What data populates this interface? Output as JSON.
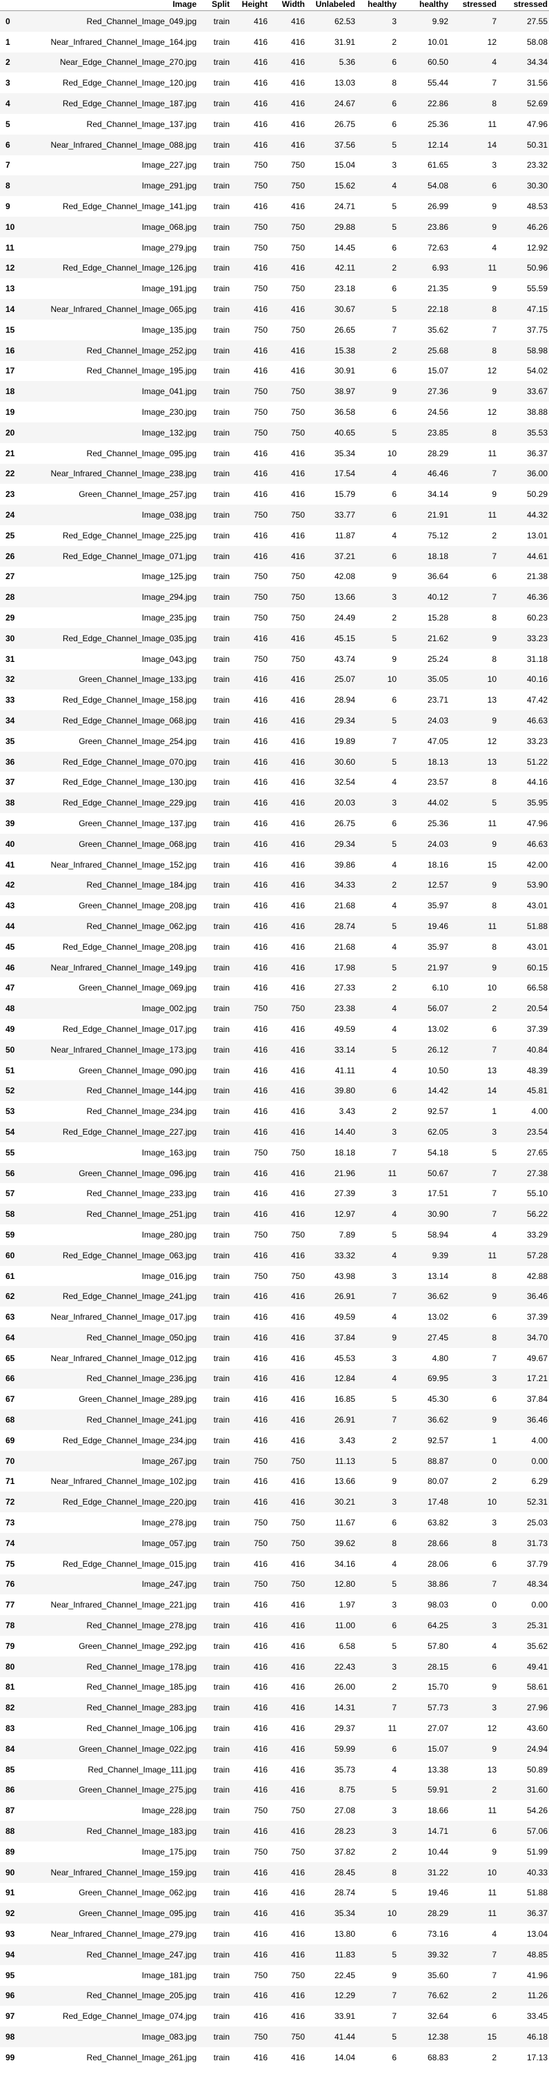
{
  "columns": [
    "",
    "Image",
    "Split",
    "Height",
    "Width",
    "Unlabeled",
    "healthy",
    "healthy",
    "stressed",
    "stressed"
  ],
  "rows": [
    [
      "0",
      "Red_Channel_Image_049.jpg",
      "train",
      "416",
      "416",
      "62.53",
      "3",
      "9.92",
      "7",
      "27.55"
    ],
    [
      "1",
      "Near_Infrared_Channel_Image_164.jpg",
      "train",
      "416",
      "416",
      "31.91",
      "2",
      "10.01",
      "12",
      "58.08"
    ],
    [
      "2",
      "Near_Edge_Channel_Image_270.jpg",
      "train",
      "416",
      "416",
      "5.36",
      "6",
      "60.50",
      "4",
      "34.34"
    ],
    [
      "3",
      "Red_Edge_Channel_Image_120.jpg",
      "train",
      "416",
      "416",
      "13.03",
      "8",
      "55.44",
      "7",
      "31.56"
    ],
    [
      "4",
      "Red_Edge_Channel_Image_187.jpg",
      "train",
      "416",
      "416",
      "24.67",
      "6",
      "22.86",
      "8",
      "52.69"
    ],
    [
      "5",
      "Red_Channel_Image_137.jpg",
      "train",
      "416",
      "416",
      "26.75",
      "6",
      "25.36",
      "11",
      "47.96"
    ],
    [
      "6",
      "Near_Infrared_Channel_Image_088.jpg",
      "train",
      "416",
      "416",
      "37.56",
      "5",
      "12.14",
      "14",
      "50.31"
    ],
    [
      "7",
      "Image_227.jpg",
      "train",
      "750",
      "750",
      "15.04",
      "3",
      "61.65",
      "3",
      "23.32"
    ],
    [
      "8",
      "Image_291.jpg",
      "train",
      "750",
      "750",
      "15.62",
      "4",
      "54.08",
      "6",
      "30.30"
    ],
    [
      "9",
      "Red_Edge_Channel_Image_141.jpg",
      "train",
      "416",
      "416",
      "24.71",
      "5",
      "26.99",
      "9",
      "48.53"
    ],
    [
      "10",
      "Image_068.jpg",
      "train",
      "750",
      "750",
      "29.88",
      "5",
      "23.86",
      "9",
      "46.26"
    ],
    [
      "11",
      "Image_279.jpg",
      "train",
      "750",
      "750",
      "14.45",
      "6",
      "72.63",
      "4",
      "12.92"
    ],
    [
      "12",
      "Red_Edge_Channel_Image_126.jpg",
      "train",
      "416",
      "416",
      "42.11",
      "2",
      "6.93",
      "11",
      "50.96"
    ],
    [
      "13",
      "Image_191.jpg",
      "train",
      "750",
      "750",
      "23.18",
      "6",
      "21.35",
      "9",
      "55.59"
    ],
    [
      "14",
      "Near_Infrared_Channel_Image_065.jpg",
      "train",
      "416",
      "416",
      "30.67",
      "5",
      "22.18",
      "8",
      "47.15"
    ],
    [
      "15",
      "Image_135.jpg",
      "train",
      "750",
      "750",
      "26.65",
      "7",
      "35.62",
      "7",
      "37.75"
    ],
    [
      "16",
      "Red_Channel_Image_252.jpg",
      "train",
      "416",
      "416",
      "15.38",
      "2",
      "25.68",
      "8",
      "58.98"
    ],
    [
      "17",
      "Red_Channel_Image_195.jpg",
      "train",
      "416",
      "416",
      "30.91",
      "6",
      "15.07",
      "12",
      "54.02"
    ],
    [
      "18",
      "Image_041.jpg",
      "train",
      "750",
      "750",
      "38.97",
      "9",
      "27.36",
      "9",
      "33.67"
    ],
    [
      "19",
      "Image_230.jpg",
      "train",
      "750",
      "750",
      "36.58",
      "6",
      "24.56",
      "12",
      "38.88"
    ],
    [
      "20",
      "Image_132.jpg",
      "train",
      "750",
      "750",
      "40.65",
      "5",
      "23.85",
      "8",
      "35.53"
    ],
    [
      "21",
      "Red_Channel_Image_095.jpg",
      "train",
      "416",
      "416",
      "35.34",
      "10",
      "28.29",
      "11",
      "36.37"
    ],
    [
      "22",
      "Near_Infrared_Channel_Image_238.jpg",
      "train",
      "416",
      "416",
      "17.54",
      "4",
      "46.46",
      "7",
      "36.00"
    ],
    [
      "23",
      "Green_Channel_Image_257.jpg",
      "train",
      "416",
      "416",
      "15.79",
      "6",
      "34.14",
      "9",
      "50.29"
    ],
    [
      "24",
      "Image_038.jpg",
      "train",
      "750",
      "750",
      "33.77",
      "6",
      "21.91",
      "11",
      "44.32"
    ],
    [
      "25",
      "Red_Edge_Channel_Image_225.jpg",
      "train",
      "416",
      "416",
      "11.87",
      "4",
      "75.12",
      "2",
      "13.01"
    ],
    [
      "26",
      "Red_Edge_Channel_Image_071.jpg",
      "train",
      "416",
      "416",
      "37.21",
      "6",
      "18.18",
      "7",
      "44.61"
    ],
    [
      "27",
      "Image_125.jpg",
      "train",
      "750",
      "750",
      "42.08",
      "9",
      "36.64",
      "6",
      "21.38"
    ],
    [
      "28",
      "Image_294.jpg",
      "train",
      "750",
      "750",
      "13.66",
      "3",
      "40.12",
      "7",
      "46.36"
    ],
    [
      "29",
      "Image_235.jpg",
      "train",
      "750",
      "750",
      "24.49",
      "2",
      "15.28",
      "8",
      "60.23"
    ],
    [
      "30",
      "Red_Edge_Channel_Image_035.jpg",
      "train",
      "416",
      "416",
      "45.15",
      "5",
      "21.62",
      "9",
      "33.23"
    ],
    [
      "31",
      "Image_043.jpg",
      "train",
      "750",
      "750",
      "43.74",
      "9",
      "25.24",
      "8",
      "31.18"
    ],
    [
      "32",
      "Green_Channel_Image_133.jpg",
      "train",
      "416",
      "416",
      "25.07",
      "10",
      "35.05",
      "10",
      "40.16"
    ],
    [
      "33",
      "Red_Edge_Channel_Image_158.jpg",
      "train",
      "416",
      "416",
      "28.94",
      "6",
      "23.71",
      "13",
      "47.42"
    ],
    [
      "34",
      "Red_Edge_Channel_Image_068.jpg",
      "train",
      "416",
      "416",
      "29.34",
      "5",
      "24.03",
      "9",
      "46.63"
    ],
    [
      "35",
      "Green_Channel_Image_254.jpg",
      "train",
      "416",
      "416",
      "19.89",
      "7",
      "47.05",
      "12",
      "33.23"
    ],
    [
      "36",
      "Red_Edge_Channel_Image_070.jpg",
      "train",
      "416",
      "416",
      "30.60",
      "5",
      "18.13",
      "13",
      "51.22"
    ],
    [
      "37",
      "Red_Edge_Channel_Image_130.jpg",
      "train",
      "416",
      "416",
      "32.54",
      "4",
      "23.57",
      "8",
      "44.16"
    ],
    [
      "38",
      "Red_Edge_Channel_Image_229.jpg",
      "train",
      "416",
      "416",
      "20.03",
      "3",
      "44.02",
      "5",
      "35.95"
    ],
    [
      "39",
      "Green_Channel_Image_137.jpg",
      "train",
      "416",
      "416",
      "26.75",
      "6",
      "25.36",
      "11",
      "47.96"
    ],
    [
      "40",
      "Green_Channel_Image_068.jpg",
      "train",
      "416",
      "416",
      "29.34",
      "5",
      "24.03",
      "9",
      "46.63"
    ],
    [
      "41",
      "Near_Infrared_Channel_Image_152.jpg",
      "train",
      "416",
      "416",
      "39.86",
      "4",
      "18.16",
      "15",
      "42.00"
    ],
    [
      "42",
      "Red_Channel_Image_184.jpg",
      "train",
      "416",
      "416",
      "34.33",
      "2",
      "12.57",
      "9",
      "53.90"
    ],
    [
      "43",
      "Green_Channel_Image_208.jpg",
      "train",
      "416",
      "416",
      "21.68",
      "4",
      "35.97",
      "8",
      "43.01"
    ],
    [
      "44",
      "Red_Channel_Image_062.jpg",
      "train",
      "416",
      "416",
      "28.74",
      "5",
      "19.46",
      "11",
      "51.88"
    ],
    [
      "45",
      "Red_Edge_Channel_Image_208.jpg",
      "train",
      "416",
      "416",
      "21.68",
      "4",
      "35.97",
      "8",
      "43.01"
    ],
    [
      "46",
      "Near_Infrared_Channel_Image_149.jpg",
      "train",
      "416",
      "416",
      "17.98",
      "5",
      "21.97",
      "9",
      "60.15"
    ],
    [
      "47",
      "Green_Channel_Image_069.jpg",
      "train",
      "416",
      "416",
      "27.33",
      "2",
      "6.10",
      "10",
      "66.58"
    ],
    [
      "48",
      "Image_002.jpg",
      "train",
      "750",
      "750",
      "23.38",
      "4",
      "56.07",
      "2",
      "20.54"
    ],
    [
      "49",
      "Red_Edge_Channel_Image_017.jpg",
      "train",
      "416",
      "416",
      "49.59",
      "4",
      "13.02",
      "6",
      "37.39"
    ],
    [
      "50",
      "Near_Infrared_Channel_Image_173.jpg",
      "train",
      "416",
      "416",
      "33.14",
      "5",
      "26.12",
      "7",
      "40.84"
    ],
    [
      "51",
      "Green_Channel_Image_090.jpg",
      "train",
      "416",
      "416",
      "41.11",
      "4",
      "10.50",
      "13",
      "48.39"
    ],
    [
      "52",
      "Red_Channel_Image_144.jpg",
      "train",
      "416",
      "416",
      "39.80",
      "6",
      "14.42",
      "14",
      "45.81"
    ],
    [
      "53",
      "Red_Channel_Image_234.jpg",
      "train",
      "416",
      "416",
      "3.43",
      "2",
      "92.57",
      "1",
      "4.00"
    ],
    [
      "54",
      "Red_Edge_Channel_Image_227.jpg",
      "train",
      "416",
      "416",
      "14.40",
      "3",
      "62.05",
      "3",
      "23.54"
    ],
    [
      "55",
      "Image_163.jpg",
      "train",
      "750",
      "750",
      "18.18",
      "7",
      "54.18",
      "5",
      "27.65"
    ],
    [
      "56",
      "Green_Channel_Image_096.jpg",
      "train",
      "416",
      "416",
      "21.96",
      "11",
      "50.67",
      "7",
      "27.38"
    ],
    [
      "57",
      "Red_Channel_Image_233.jpg",
      "train",
      "416",
      "416",
      "27.39",
      "3",
      "17.51",
      "7",
      "55.10"
    ],
    [
      "58",
      "Red_Channel_Image_251.jpg",
      "train",
      "416",
      "416",
      "12.97",
      "4",
      "30.90",
      "7",
      "56.22"
    ],
    [
      "59",
      "Image_280.jpg",
      "train",
      "750",
      "750",
      "7.89",
      "5",
      "58.94",
      "4",
      "33.29"
    ],
    [
      "60",
      "Red_Edge_Channel_Image_063.jpg",
      "train",
      "416",
      "416",
      "33.32",
      "4",
      "9.39",
      "11",
      "57.28"
    ],
    [
      "61",
      "Image_016.jpg",
      "train",
      "750",
      "750",
      "43.98",
      "3",
      "13.14",
      "8",
      "42.88"
    ],
    [
      "62",
      "Red_Edge_Channel_Image_241.jpg",
      "train",
      "416",
      "416",
      "26.91",
      "7",
      "36.62",
      "9",
      "36.46"
    ],
    [
      "63",
      "Near_Infrared_Channel_Image_017.jpg",
      "train",
      "416",
      "416",
      "49.59",
      "4",
      "13.02",
      "6",
      "37.39"
    ],
    [
      "64",
      "Red_Channel_Image_050.jpg",
      "train",
      "416",
      "416",
      "37.84",
      "9",
      "27.45",
      "8",
      "34.70"
    ],
    [
      "65",
      "Near_Infrared_Channel_Image_012.jpg",
      "train",
      "416",
      "416",
      "45.53",
      "3",
      "4.80",
      "7",
      "49.67"
    ],
    [
      "66",
      "Red_Channel_Image_236.jpg",
      "train",
      "416",
      "416",
      "12.84",
      "4",
      "69.95",
      "3",
      "17.21"
    ],
    [
      "67",
      "Green_Channel_Image_289.jpg",
      "train",
      "416",
      "416",
      "16.85",
      "5",
      "45.30",
      "6",
      "37.84"
    ],
    [
      "68",
      "Red_Channel_Image_241.jpg",
      "train",
      "416",
      "416",
      "26.91",
      "7",
      "36.62",
      "9",
      "36.46"
    ],
    [
      "69",
      "Red_Edge_Channel_Image_234.jpg",
      "train",
      "416",
      "416",
      "3.43",
      "2",
      "92.57",
      "1",
      "4.00"
    ],
    [
      "70",
      "Image_267.jpg",
      "train",
      "750",
      "750",
      "11.13",
      "5",
      "88.87",
      "0",
      "0.00"
    ],
    [
      "71",
      "Near_Infrared_Channel_Image_102.jpg",
      "train",
      "416",
      "416",
      "13.66",
      "9",
      "80.07",
      "2",
      "6.29"
    ],
    [
      "72",
      "Red_Edge_Channel_Image_220.jpg",
      "train",
      "416",
      "416",
      "30.21",
      "3",
      "17.48",
      "10",
      "52.31"
    ],
    [
      "73",
      "Image_278.jpg",
      "train",
      "750",
      "750",
      "11.67",
      "6",
      "63.82",
      "3",
      "25.03"
    ],
    [
      "74",
      "Image_057.jpg",
      "train",
      "750",
      "750",
      "39.62",
      "8",
      "28.66",
      "8",
      "31.73"
    ],
    [
      "75",
      "Red_Edge_Channel_Image_015.jpg",
      "train",
      "416",
      "416",
      "34.16",
      "4",
      "28.06",
      "6",
      "37.79"
    ],
    [
      "76",
      "Image_247.jpg",
      "train",
      "750",
      "750",
      "12.80",
      "5",
      "38.86",
      "7",
      "48.34"
    ],
    [
      "77",
      "Near_Infrared_Channel_Image_221.jpg",
      "train",
      "416",
      "416",
      "1.97",
      "3",
      "98.03",
      "0",
      "0.00"
    ],
    [
      "78",
      "Red_Channel_Image_278.jpg",
      "train",
      "416",
      "416",
      "11.00",
      "6",
      "64.25",
      "3",
      "25.31"
    ],
    [
      "79",
      "Green_Channel_Image_292.jpg",
      "train",
      "416",
      "416",
      "6.58",
      "5",
      "57.80",
      "4",
      "35.62"
    ],
    [
      "80",
      "Red_Channel_Image_178.jpg",
      "train",
      "416",
      "416",
      "22.43",
      "3",
      "28.15",
      "6",
      "49.41"
    ],
    [
      "81",
      "Red_Channel_Image_185.jpg",
      "train",
      "416",
      "416",
      "26.00",
      "2",
      "15.70",
      "9",
      "58.61"
    ],
    [
      "82",
      "Red_Channel_Image_283.jpg",
      "train",
      "416",
      "416",
      "14.31",
      "7",
      "57.73",
      "3",
      "27.96"
    ],
    [
      "83",
      "Red_Channel_Image_106.jpg",
      "train",
      "416",
      "416",
      "29.37",
      "11",
      "27.07",
      "12",
      "43.60"
    ],
    [
      "84",
      "Green_Channel_Image_022.jpg",
      "train",
      "416",
      "416",
      "59.99",
      "6",
      "15.07",
      "9",
      "24.94"
    ],
    [
      "85",
      "Red_Channel_Image_111.jpg",
      "train",
      "416",
      "416",
      "35.73",
      "4",
      "13.38",
      "13",
      "50.89"
    ],
    [
      "86",
      "Green_Channel_Image_275.jpg",
      "train",
      "416",
      "416",
      "8.75",
      "5",
      "59.91",
      "2",
      "31.60"
    ],
    [
      "87",
      "Image_228.jpg",
      "train",
      "750",
      "750",
      "27.08",
      "3",
      "18.66",
      "11",
      "54.26"
    ],
    [
      "88",
      "Red_Channel_Image_183.jpg",
      "train",
      "416",
      "416",
      "28.23",
      "3",
      "14.71",
      "6",
      "57.06"
    ],
    [
      "89",
      "Image_175.jpg",
      "train",
      "750",
      "750",
      "37.82",
      "2",
      "10.44",
      "9",
      "51.99"
    ],
    [
      "90",
      "Near_Infrared_Channel_Image_159.jpg",
      "train",
      "416",
      "416",
      "28.45",
      "8",
      "31.22",
      "10",
      "40.33"
    ],
    [
      "91",
      "Green_Channel_Image_062.jpg",
      "train",
      "416",
      "416",
      "28.74",
      "5",
      "19.46",
      "11",
      "51.88"
    ],
    [
      "92",
      "Green_Channel_Image_095.jpg",
      "train",
      "416",
      "416",
      "35.34",
      "10",
      "28.29",
      "11",
      "36.37"
    ],
    [
      "93",
      "Near_Infrared_Channel_Image_279.jpg",
      "train",
      "416",
      "416",
      "13.80",
      "6",
      "73.16",
      "4",
      "13.04"
    ],
    [
      "94",
      "Red_Channel_Image_247.jpg",
      "train",
      "416",
      "416",
      "11.83",
      "5",
      "39.32",
      "7",
      "48.85"
    ],
    [
      "95",
      "Image_181.jpg",
      "train",
      "750",
      "750",
      "22.45",
      "9",
      "35.60",
      "7",
      "41.96"
    ],
    [
      "96",
      "Red_Channel_Image_205.jpg",
      "train",
      "416",
      "416",
      "12.29",
      "7",
      "76.62",
      "2",
      "11.26"
    ],
    [
      "97",
      "Red_Edge_Channel_Image_074.jpg",
      "train",
      "416",
      "416",
      "33.91",
      "7",
      "32.64",
      "6",
      "33.45"
    ],
    [
      "98",
      "Image_083.jpg",
      "train",
      "750",
      "750",
      "41.44",
      "5",
      "12.38",
      "15",
      "46.18"
    ],
    [
      "99",
      "Red_Channel_Image_261.jpg",
      "train",
      "416",
      "416",
      "14.04",
      "6",
      "68.83",
      "2",
      "17.13"
    ]
  ]
}
